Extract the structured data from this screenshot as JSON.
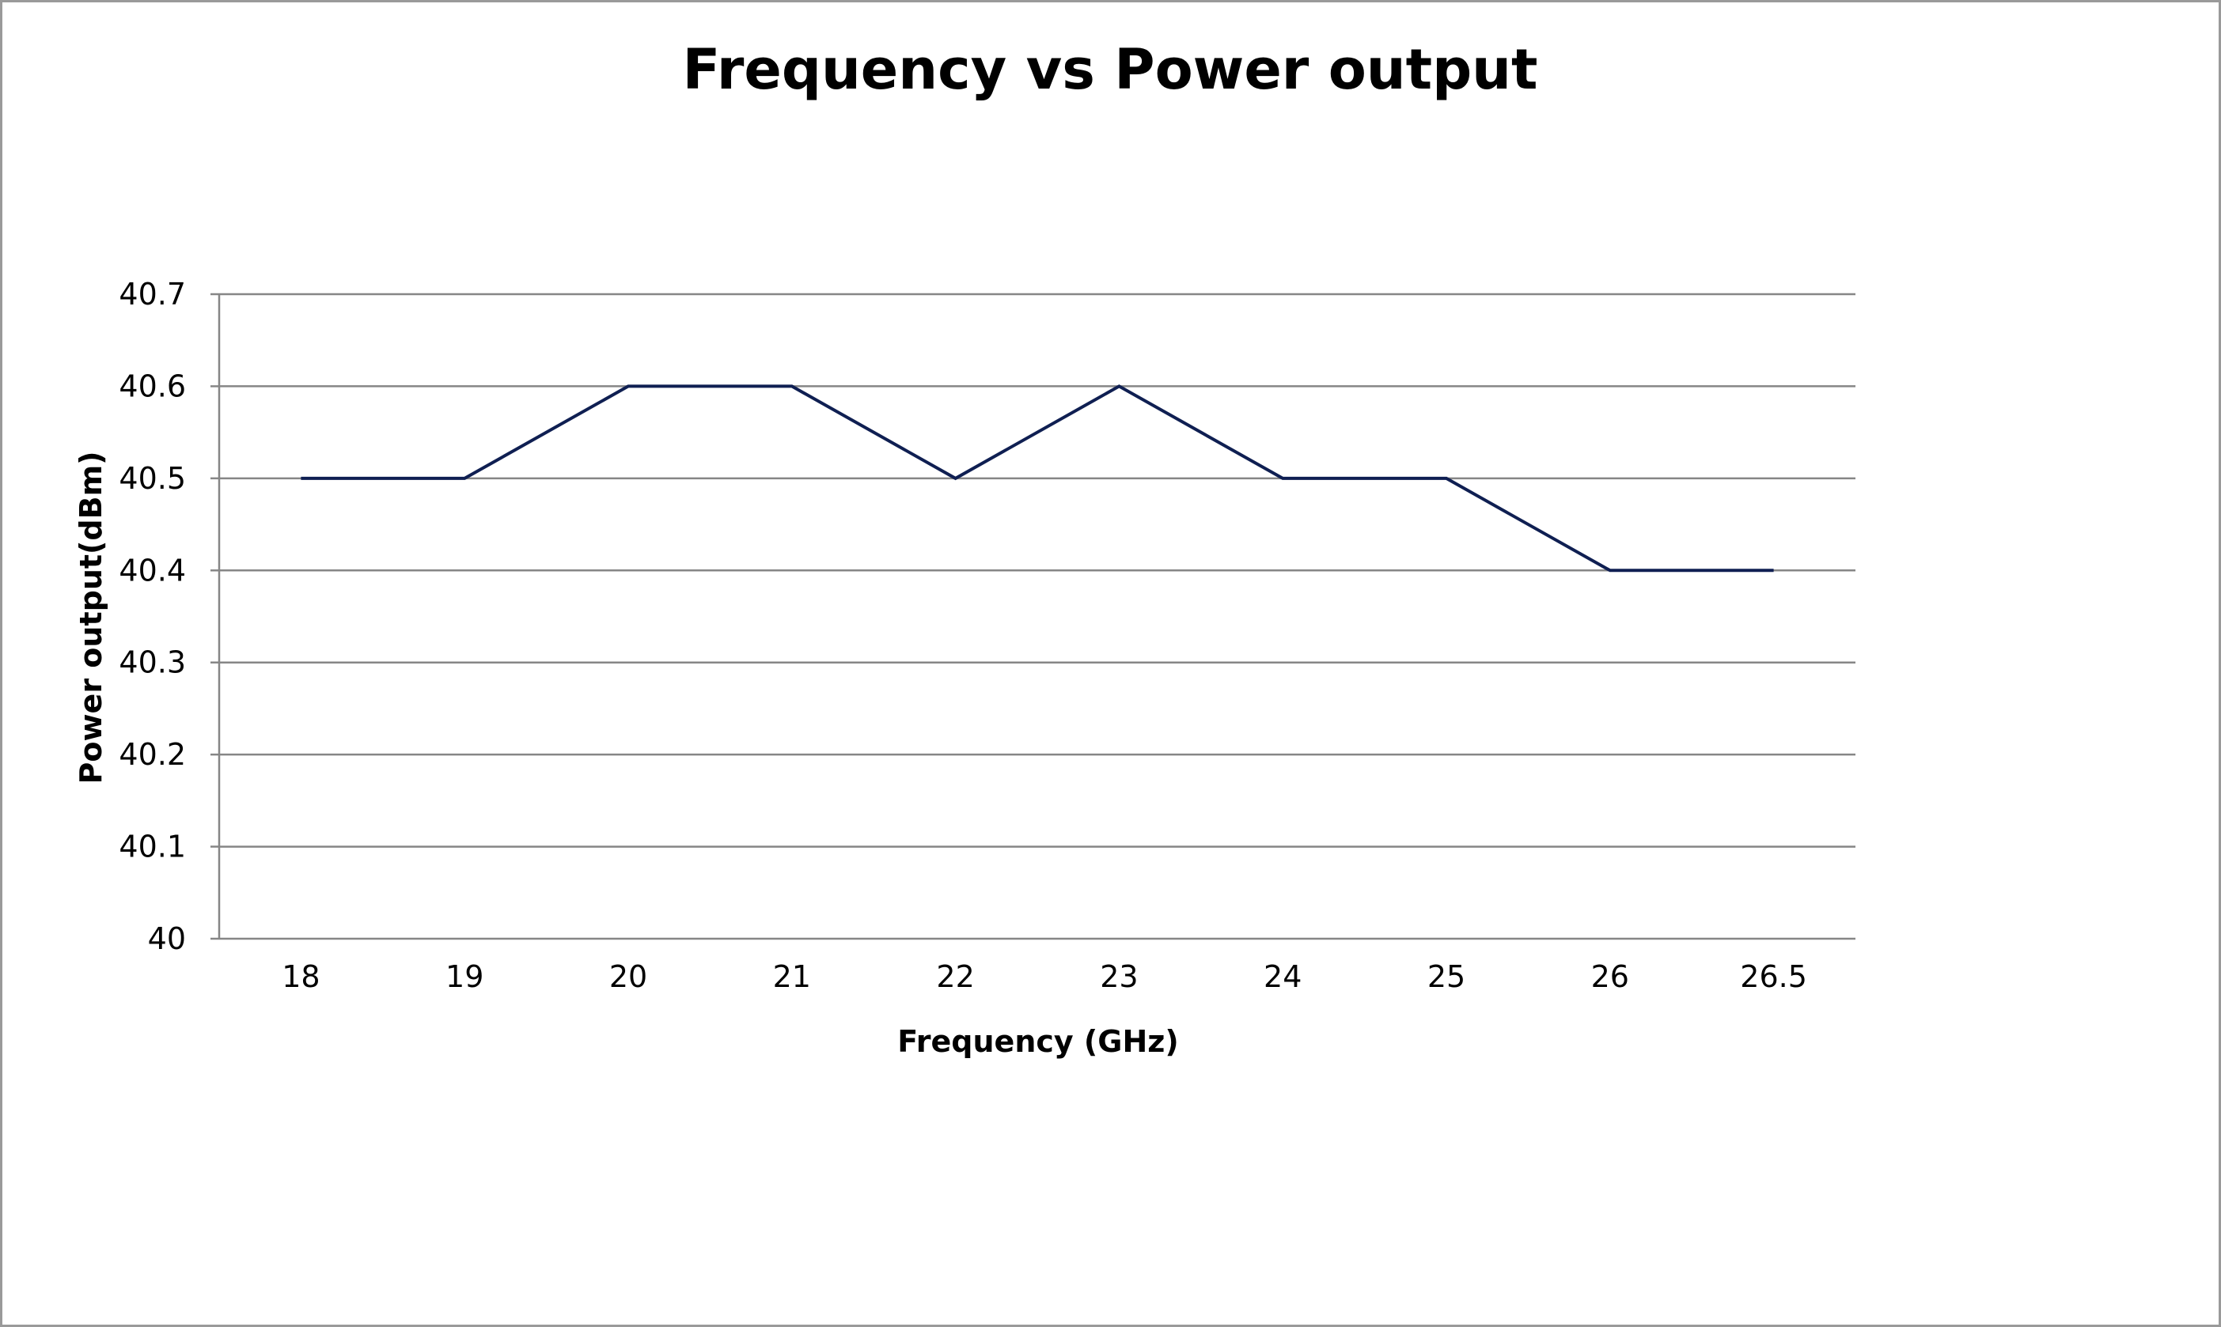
{
  "chart_data": {
    "type": "line",
    "title": "Frequency vs Power output",
    "xlabel": "Frequency (GHz)",
    "ylabel": "Power output(dBm)",
    "categories": [
      "18",
      "19",
      "20",
      "21",
      "22",
      "23",
      "24",
      "25",
      "26",
      "26.5"
    ],
    "series": [
      {
        "values": [
          40.5,
          40.5,
          40.6,
          40.6,
          40.5,
          40.6,
          40.5,
          40.5,
          40.4,
          40.4
        ],
        "color": "#0f1f52"
      }
    ],
    "ylim": [
      40,
      40.7
    ],
    "yticks": [
      "40",
      "40.1",
      "40.2",
      "40.3",
      "40.4",
      "40.5",
      "40.6",
      "40.7"
    ],
    "grid": true,
    "legend": "none",
    "gridline_color": "#868686",
    "axis_color": "#868686"
  }
}
